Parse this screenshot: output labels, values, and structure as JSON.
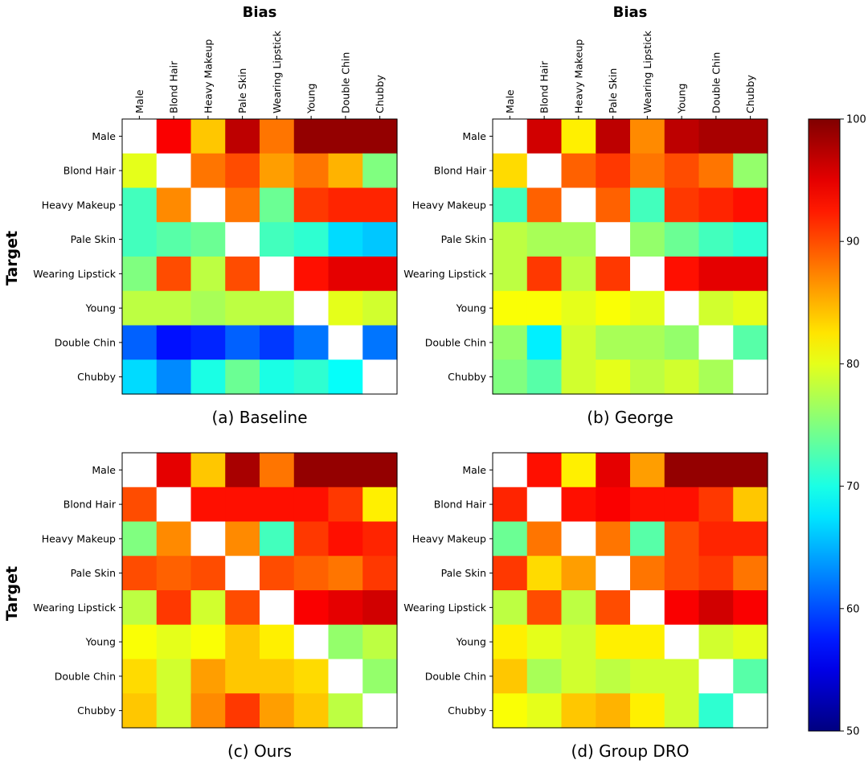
{
  "chart_data": {
    "type": "heatmap",
    "colormap": "jet",
    "colorbar": {
      "min": 50,
      "max": 100,
      "ticks": [
        50,
        60,
        70,
        80,
        90,
        100
      ]
    },
    "bias_label": "Bias",
    "target_label": "Target",
    "attributes": [
      "Male",
      "Blond Hair",
      "Heavy Makeup",
      "Pale Skin",
      "Wearing Lipstick",
      "Young",
      "Double Chin",
      "Chubby"
    ],
    "panels": [
      {
        "caption": "(a) Baseline",
        "values": [
          [
            null,
            94,
            84,
            97,
            88,
            99,
            99,
            99
          ],
          [
            80,
            null,
            88,
            90,
            86,
            88,
            85,
            75
          ],
          [
            72,
            87,
            null,
            88,
            74,
            91,
            92,
            92
          ],
          [
            72,
            73,
            74,
            null,
            72,
            71,
            67,
            66
          ],
          [
            75,
            90,
            78,
            90,
            null,
            93,
            95,
            95
          ],
          [
            78,
            78,
            77,
            78,
            78,
            null,
            80,
            79
          ],
          [
            61,
            57,
            58,
            61,
            59,
            62,
            null,
            62
          ],
          [
            67,
            63,
            70,
            74,
            70,
            71,
            69,
            null
          ]
        ]
      },
      {
        "caption": "(b) George",
        "values": [
          [
            null,
            96,
            82,
            97,
            87,
            97,
            98,
            98
          ],
          [
            83,
            null,
            89,
            91,
            88,
            90,
            88,
            76
          ],
          [
            72,
            89,
            null,
            89,
            72,
            91,
            92,
            93
          ],
          [
            78,
            77,
            77,
            null,
            76,
            74,
            72,
            71
          ],
          [
            78,
            91,
            78,
            91,
            null,
            93,
            95,
            95
          ],
          [
            81,
            81,
            80,
            81,
            80,
            null,
            79,
            80
          ],
          [
            76,
            68,
            79,
            77,
            77,
            76,
            null,
            73
          ],
          [
            75,
            73,
            79,
            80,
            78,
            79,
            77,
            null
          ]
        ]
      },
      {
        "caption": "(c) Ours",
        "values": [
          [
            null,
            95,
            84,
            98,
            88,
            99,
            99,
            99
          ],
          [
            90,
            null,
            93,
            93,
            93,
            93,
            91,
            82
          ],
          [
            75,
            87,
            null,
            87,
            72,
            91,
            93,
            92
          ],
          [
            90,
            89,
            90,
            null,
            90,
            89,
            88,
            91
          ],
          [
            78,
            91,
            79,
            90,
            null,
            94,
            95,
            96
          ],
          [
            81,
            80,
            81,
            84,
            82,
            null,
            76,
            78
          ],
          [
            83,
            79,
            86,
            84,
            84,
            83,
            null,
            76
          ],
          [
            84,
            79,
            87,
            91,
            86,
            84,
            78,
            null
          ]
        ]
      },
      {
        "caption": "(d) Group DRO",
        "values": [
          [
            null,
            93,
            82,
            95,
            86,
            99,
            99,
            99
          ],
          [
            92,
            null,
            93,
            94,
            93,
            93,
            91,
            84
          ],
          [
            74,
            88,
            null,
            88,
            73,
            90,
            92,
            92
          ],
          [
            91,
            83,
            86,
            null,
            88,
            90,
            91,
            88
          ],
          [
            78,
            90,
            78,
            90,
            null,
            94,
            96,
            94
          ],
          [
            82,
            80,
            79,
            82,
            82,
            null,
            79,
            80
          ],
          [
            84,
            77,
            79,
            78,
            79,
            79,
            null,
            73
          ],
          [
            81,
            80,
            84,
            85,
            82,
            79,
            71,
            null
          ]
        ]
      }
    ]
  }
}
